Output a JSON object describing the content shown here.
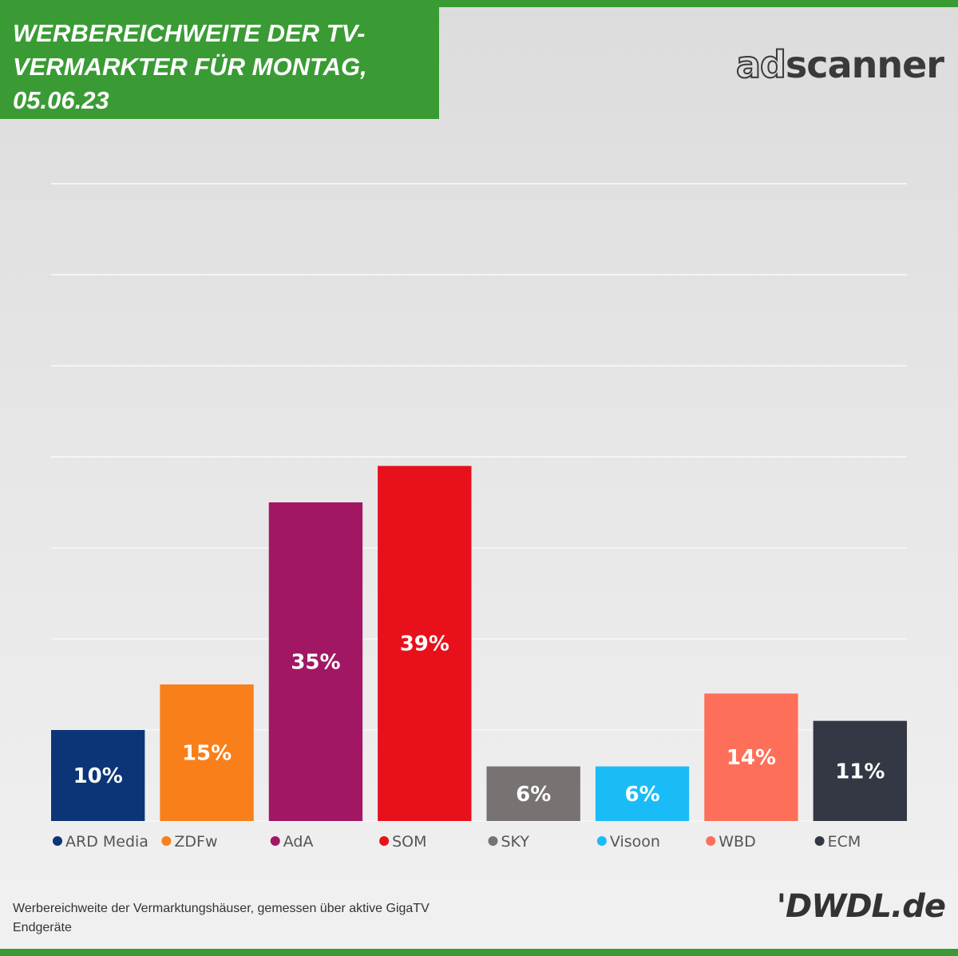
{
  "header": {
    "title": "WERBEREICHWEITE DER TV-\nVERMARKTER FÜR MONTAG,\n05.06.23"
  },
  "logos": {
    "adscanner_ad": "ad",
    "adscanner_rest": "scanner",
    "dwdl": "'DWDL.de"
  },
  "footer": {
    "note": "Werbereichweite der Vermarktungshäuser, gemessen über aktive GigaTV Endgeräte"
  },
  "colors": {
    "brand_green": "#3a9b35",
    "grid": "#f5f5f5"
  },
  "chart_data": {
    "type": "bar",
    "title": "WERBEREICHWEITE DER TV-VERMARKTER FÜR MONTAG, 05.06.23",
    "xlabel": "",
    "ylabel": "",
    "ylim": [
      0,
      70
    ],
    "grid": true,
    "legend": "bottom",
    "categories": [
      "ARD Media",
      "ZDFw",
      "AdA",
      "SOM",
      "SKY",
      "Visoon",
      "WBD",
      "ECM"
    ],
    "values": [
      10,
      15,
      35,
      39,
      6,
      6,
      14,
      11
    ],
    "labels": [
      "10%",
      "15%",
      "35%",
      "39%",
      "6%",
      "6%",
      "14%",
      "11%"
    ],
    "colors": [
      "#0c3578",
      "#f97f1a",
      "#a21763",
      "#e8101a",
      "#787272",
      "#1abcf8",
      "#fe6f59",
      "#343744"
    ]
  }
}
